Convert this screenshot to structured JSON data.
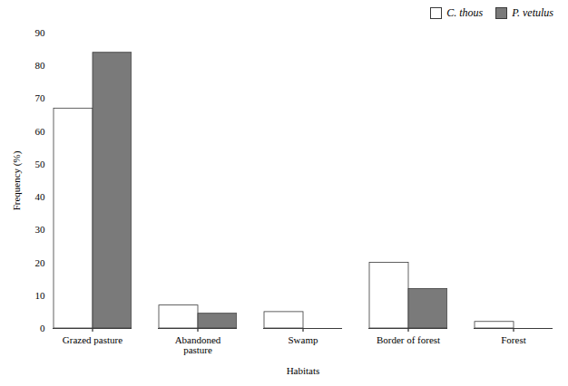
{
  "chart_data": {
    "type": "bar",
    "categories": [
      "Grazed pasture",
      "Abandoned\npasture",
      "Swamp",
      "Border of forest",
      "Forest"
    ],
    "series": [
      {
        "name": "C. thous",
        "color": "#ffffff",
        "values": [
          67,
          7,
          5,
          20,
          2
        ]
      },
      {
        "name": "P. vetulus",
        "color": "#7a7a7a",
        "values": [
          84,
          4.5,
          0,
          12,
          0
        ]
      }
    ],
    "xlabel": "Habitats",
    "ylabel": "Frequency (%)",
    "ylim": [
      0,
      90
    ],
    "yticks": [
      0,
      10,
      20,
      30,
      40,
      50,
      60,
      70,
      80,
      90
    ],
    "grid": false,
    "legend": "upper right"
  }
}
